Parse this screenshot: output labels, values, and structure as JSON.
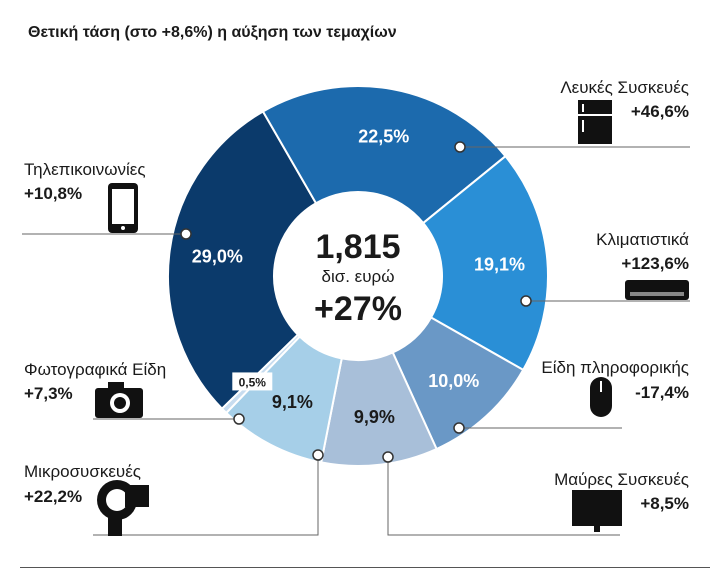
{
  "title": "Θετική τάση (στο +8,6%) η αύξηση των τεμαχίων",
  "center": {
    "total": "1,815",
    "unit": "δισ. ευρώ",
    "growth": "+27%"
  },
  "colors": {
    "telecom": "#0b3a6b",
    "white_goods": "#1c6aad",
    "air_conditioners": "#2a8fd6",
    "it": "#6a98c6",
    "brown_goods": "#a8bfd9",
    "small_appliances": "#a6cfe8",
    "photo": "#c7dcef"
  },
  "categories": [
    {
      "key": "white_goods",
      "name": "Λευκές Συσκευές",
      "change": "+46,6%",
      "share_label": "22,5%",
      "icon": "fridge-icon"
    },
    {
      "key": "air_conditioners",
      "name": "Κλιματιστικά",
      "change": "+123,6%",
      "share_label": "19,1%",
      "icon": "air-conditioner-icon"
    },
    {
      "key": "it",
      "name": "Είδη πληροφορικής",
      "change": "-17,4%",
      "share_label": "10,0%",
      "icon": "mouse-icon"
    },
    {
      "key": "brown_goods",
      "name": "Μαύρες Συσκευές",
      "change": "+8,5%",
      "share_label": "9,9%",
      "icon": "tv-icon"
    },
    {
      "key": "small_appliances",
      "name": "Μικροσυσκευές",
      "change": "+22,2%",
      "share_label": "9,1%",
      "icon": "hair-dryer-icon"
    },
    {
      "key": "photo",
      "name": "Φωτογραφικά Είδη",
      "change": "+7,3%",
      "share_label": "0,5%",
      "icon": "camera-icon"
    },
    {
      "key": "telecom",
      "name": "Τηλεπικοινωνίες",
      "change": "+10,8%",
      "share_label": "29,0%",
      "icon": "phone-icon"
    }
  ],
  "chart_data": {
    "type": "pie",
    "subtype": "donut",
    "slices": [
      {
        "name": "Τηλεπικοινωνίες",
        "value": 29.0,
        "change": 10.8
      },
      {
        "name": "Λευκές Συσκευές",
        "value": 22.5,
        "change": 46.6
      },
      {
        "name": "Κλιματιστικά",
        "value": 19.1,
        "change": 123.6
      },
      {
        "name": "Είδη πληροφορικής",
        "value": 10.0,
        "change": -17.4
      },
      {
        "name": "Μαύρες Συσκευές",
        "value": 9.9,
        "change": 8.5
      },
      {
        "name": "Μικροσυσκευές",
        "value": 9.1,
        "change": 22.2
      },
      {
        "name": "Φωτογραφικά Είδη",
        "value": 0.5,
        "change": 7.3
      }
    ],
    "total": 1.815,
    "total_growth": 27
  }
}
